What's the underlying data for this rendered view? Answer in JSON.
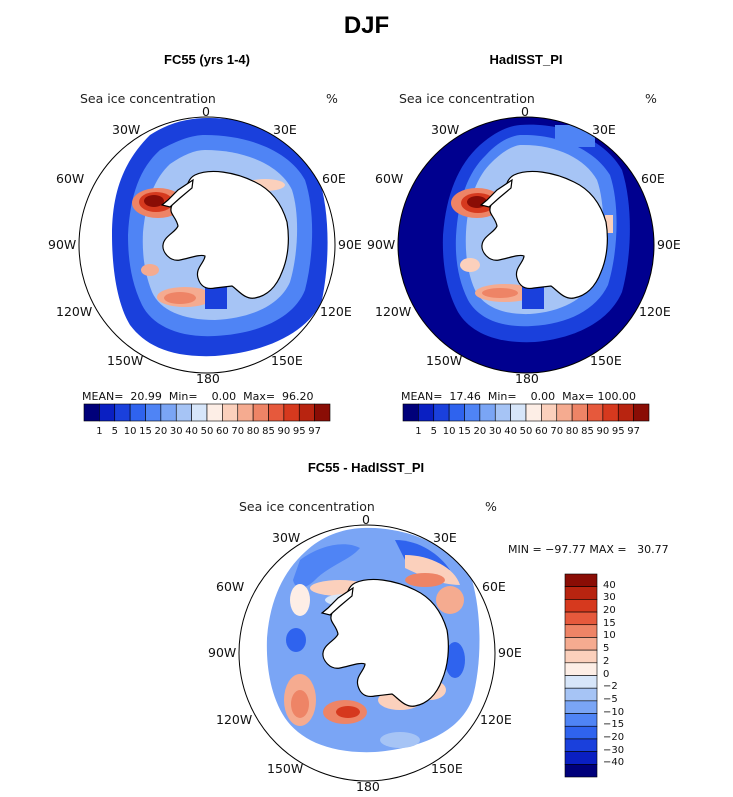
{
  "figure_title": "DJF",
  "palette_abs": [
    "#00007a",
    "#0a1fc2",
    "#1a40dc",
    "#2f63ee",
    "#4f84f5",
    "#7aa5f5",
    "#a6c4f5",
    "#d7e6fa",
    "#fdeee6",
    "#fbd0bc",
    "#f5ab90",
    "#ee8466",
    "#e6593c",
    "#d6391e",
    "#b82410",
    "#8a0d05"
  ],
  "palette_diff": [
    "#00007a",
    "#0a1fc2",
    "#1a40dc",
    "#2f63ee",
    "#4f84f5",
    "#7aa5f5",
    "#a6c4f5",
    "#d7e6fa",
    "#fdeee6",
    "#fbd0bc",
    "#f5ab90",
    "#ee8466",
    "#e6593c",
    "#d6391e",
    "#b82410",
    "#8a0d05"
  ],
  "colors": {
    "land": "#ffffff",
    "coast": "#000000",
    "ocean_fill": "#00008f"
  },
  "panels": [
    {
      "id": "fc55",
      "subtitle": "FC55 (yrs 1-4)",
      "variable": "Sea ice concentration",
      "units": "%",
      "lon_labels": {
        "top": "0",
        "tr": "30E",
        "r1": "60E",
        "r2": "90E",
        "r3": "120E",
        "br": "150E",
        "bottom": "180",
        "bl": "150W",
        "l3": "120W",
        "l2": "90W",
        "l1": "60W",
        "tl": "30W"
      },
      "stats": "MEAN=  20.99  Min=    0.00  Max=  96.20",
      "colorbar_ticks": [
        "1",
        "5",
        "10",
        "15",
        "20",
        "30",
        "40",
        "50",
        "60",
        "70",
        "80",
        "85",
        "90",
        "95",
        "97"
      ],
      "mean": 20.99,
      "min": 0.0,
      "max": 96.2
    },
    {
      "id": "hadisst",
      "subtitle": "HadISST_PI",
      "variable": "Sea ice concentration",
      "units": "%",
      "lon_labels": {
        "top": "0",
        "tr": "30E",
        "r1": "60E",
        "r2": "90E",
        "r3": "120E",
        "br": "150E",
        "bottom": "180",
        "bl": "150W",
        "l3": "120W",
        "l2": "90W",
        "l1": "60W",
        "tl": "30W"
      },
      "stats": "MEAN=  17.46  Min=    0.00  Max= 100.00",
      "colorbar_ticks": [
        "1",
        "5",
        "10",
        "15",
        "20",
        "30",
        "40",
        "50",
        "60",
        "70",
        "80",
        "85",
        "90",
        "95",
        "97"
      ],
      "mean": 17.46,
      "min": 0.0,
      "max": 100.0
    },
    {
      "id": "diff",
      "subtitle": "FC55 - HadISST_PI",
      "variable": "Sea ice concentration",
      "units": "%",
      "lon_labels": {
        "top": "0",
        "tr": "30E",
        "r1": "60E",
        "r2": "90E",
        "r3": "120E",
        "br": "150E",
        "bottom": "180",
        "bl": "150W",
        "l3": "120W",
        "l2": "90W",
        "l1": "60W",
        "tl": "30W"
      },
      "stats": "MIN = −97.77 MAX =   30.77",
      "colorbar_ticks": [
        "40",
        "30",
        "20",
        "15",
        "10",
        "5",
        "2",
        "0",
        "−2",
        "−5",
        "−10",
        "−15",
        "−20",
        "−30",
        "−40"
      ],
      "min": -97.77,
      "max": 30.77
    }
  ]
}
